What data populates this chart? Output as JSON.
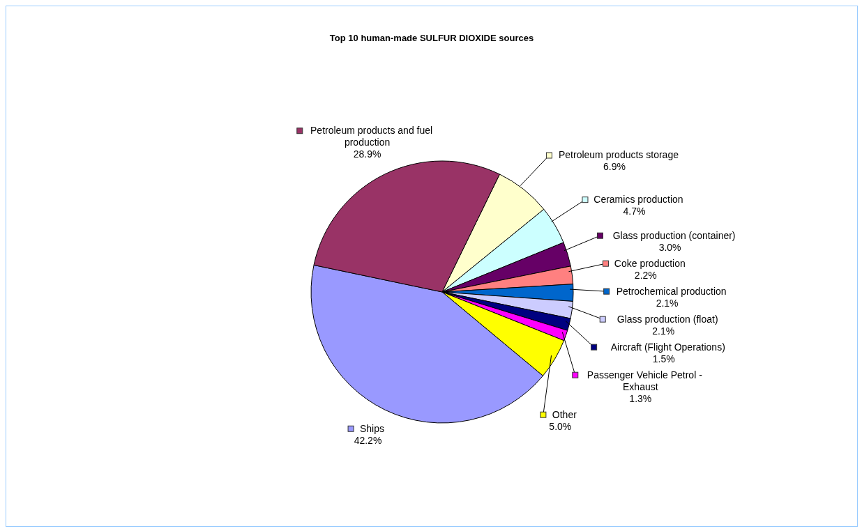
{
  "chart_data": {
    "type": "pie",
    "title": "Top 10 human-made SULFUR DIOXIDE sources",
    "categories": [
      "Petroleum products storage",
      "Ceramics production",
      "Glass production (container)",
      "Coke production",
      "Petrochemical production",
      "Glass production (float)",
      "Aircraft (Flight Operations)",
      "Passenger Vehicle Petrol - Exhaust",
      "Other",
      "Ships",
      "Petroleum products and fuel production"
    ],
    "values": [
      6.9,
      4.7,
      3.0,
      2.2,
      2.1,
      2.1,
      1.5,
      1.3,
      5.0,
      42.2,
      28.9
    ],
    "value_labels": [
      "6.9%",
      "4.7%",
      "3.0%",
      "2.2%",
      "2.1%",
      "2.1%",
      "1.5%",
      "1.3%",
      "5.0%",
      "42.2%",
      "28.9%"
    ],
    "legend": "right",
    "colors": [
      "#ffffcc",
      "#ccffff",
      "#660066",
      "#ff8080",
      "#0066cc",
      "#ccccff",
      "#000080",
      "#ff00ff",
      "#ffff00",
      "#9999ff",
      "#993366"
    ]
  }
}
